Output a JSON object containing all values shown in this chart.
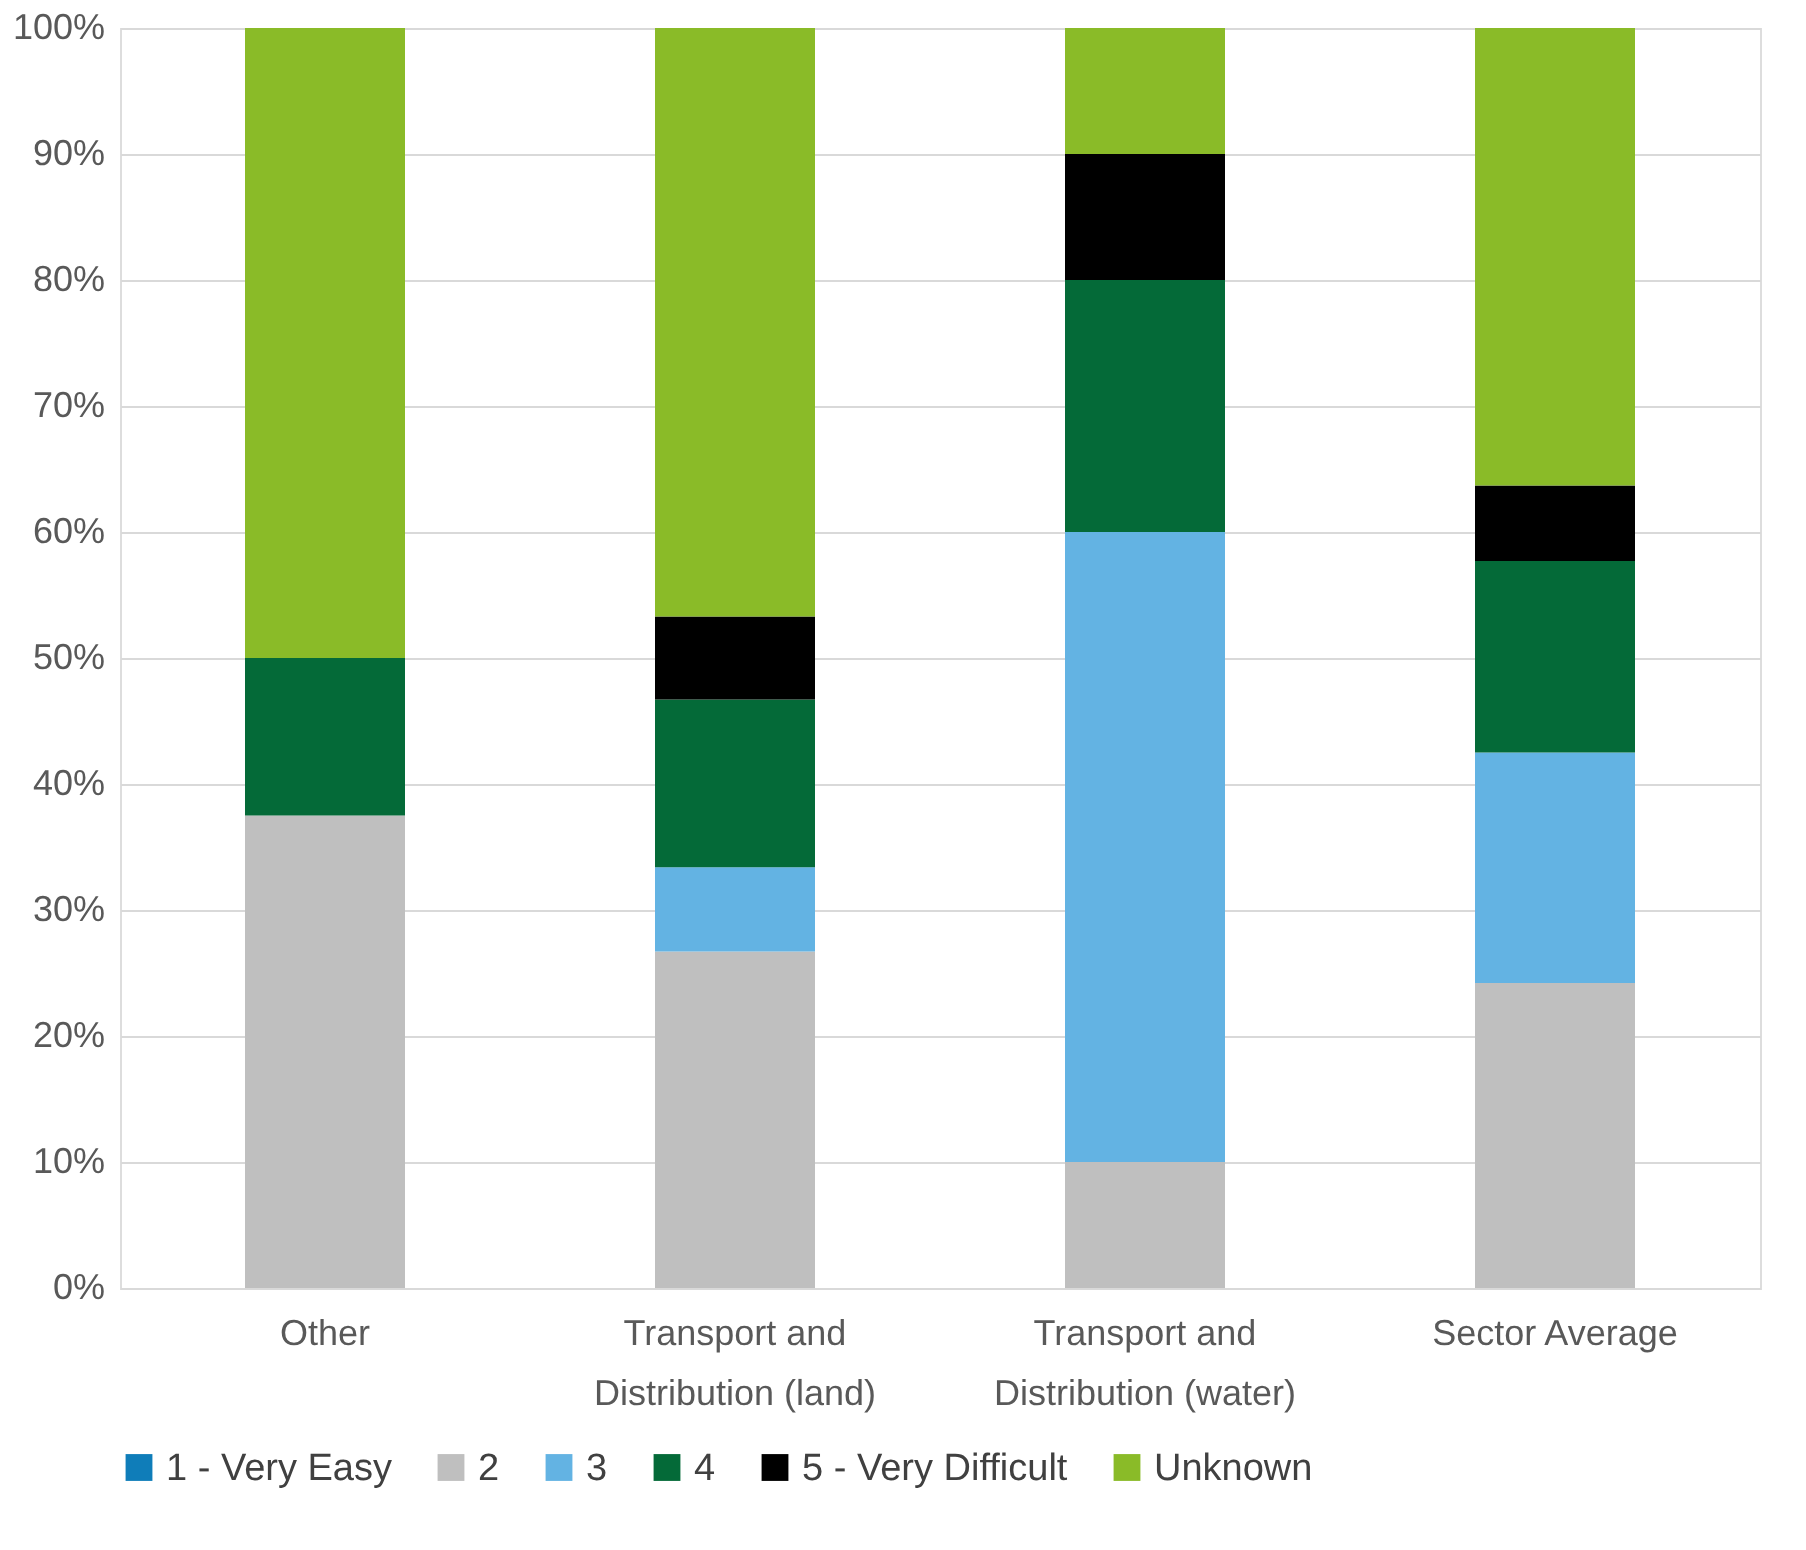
{
  "chart_data": {
    "type": "bar",
    "stacked": true,
    "categories": [
      "Other",
      "Transport and Distribution (land)",
      "Transport and Distribution (water)",
      "Sector Average"
    ],
    "series": [
      {
        "name": "1 - Very Easy",
        "color": "#0f7db9",
        "values": [
          0,
          0,
          0,
          0
        ]
      },
      {
        "name": "2",
        "color": "#bfbfbf",
        "values": [
          37.5,
          26.7,
          10,
          24.2
        ]
      },
      {
        "name": "3",
        "color": "#63b3e3",
        "values": [
          0,
          6.7,
          50,
          18.3
        ]
      },
      {
        "name": "4",
        "color": "#046a38",
        "values": [
          12.5,
          13.3,
          20,
          15.2
        ]
      },
      {
        "name": "5 - Very Difficult",
        "color": "#000000",
        "values": [
          0,
          6.6,
          10,
          6
        ]
      },
      {
        "name": "Unknown",
        "color": "#8abb28",
        "values": [
          50,
          46.7,
          10,
          36.3
        ]
      }
    ],
    "ylim": [
      0,
      100
    ],
    "yticks": [
      {
        "value": 0,
        "label": "0%"
      },
      {
        "value": 10,
        "label": "10%"
      },
      {
        "value": 20,
        "label": "20%"
      },
      {
        "value": 30,
        "label": "30%"
      },
      {
        "value": 40,
        "label": "40%"
      },
      {
        "value": 50,
        "label": "50%"
      },
      {
        "value": 60,
        "label": "60%"
      },
      {
        "value": 70,
        "label": "70%"
      },
      {
        "value": 80,
        "label": "80%"
      },
      {
        "value": 90,
        "label": "90%"
      },
      {
        "value": 100,
        "label": "100%"
      }
    ],
    "grid": "y",
    "legend": "bottom"
  }
}
